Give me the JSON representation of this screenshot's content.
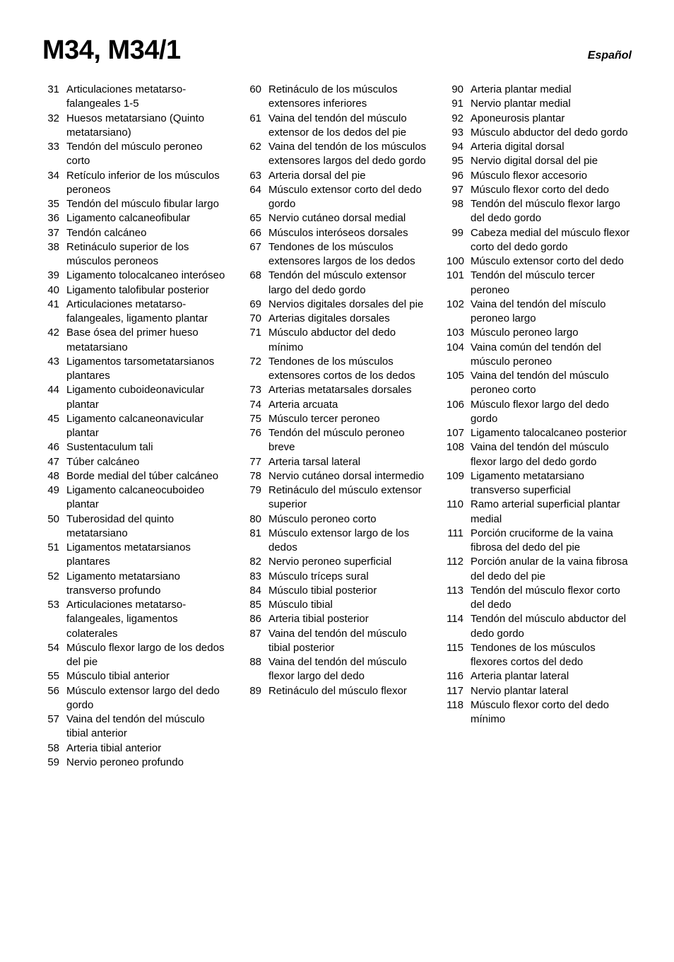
{
  "header": {
    "title": "M34, M34/1",
    "language": "Español"
  },
  "columns": [
    [
      {
        "n": "31",
        "t": "Articulaciones metatarso­falangeales 1-5"
      },
      {
        "n": "32",
        "t": "Huesos metatarsiano (Quinto metatarsiano)"
      },
      {
        "n": "33",
        "t": "Tendón del músculo peroneo corto"
      },
      {
        "n": "34",
        "t": "Retículo inferior de los músculos peroneos"
      },
      {
        "n": "35",
        "t": "Tendón del músculo fibular largo"
      },
      {
        "n": "36",
        "t": "Ligamento calcaneofibular"
      },
      {
        "n": "37",
        "t": "Tendón calcáneo"
      },
      {
        "n": "38",
        "t": "Retináculo superior de los músculos peroneos"
      },
      {
        "n": "39",
        "t": "Ligamento tolocalcaneo interóseo"
      },
      {
        "n": "40",
        "t": "Ligamento talofibular posterior"
      },
      {
        "n": "41",
        "t": "Articulaciones metatarso­falangeales, ligamento plantar"
      },
      {
        "n": "42",
        "t": "Base ósea del primer hueso metatarsiano"
      },
      {
        "n": "43",
        "t": "Ligamentos tarsometatarsi­anos plantares"
      },
      {
        "n": "44",
        "t": "Ligamento cuboideonavi­cular plantar"
      },
      {
        "n": "45",
        "t": "Ligamento calcaneonavicu­lar plantar"
      },
      {
        "n": "46",
        "t": "Sustentaculum tali"
      },
      {
        "n": "47",
        "t": "Túber calcáneo"
      },
      {
        "n": "48",
        "t": "Borde medial del túber calcáneo"
      },
      {
        "n": "49",
        "t": "Ligamento calcaneo­cuboideo plantar"
      },
      {
        "n": "50",
        "t": "Tuberosidad del quinto metatarsiano"
      },
      {
        "n": "51",
        "t": "Ligamentos metatarsianos plantares"
      },
      {
        "n": "52",
        "t": "Ligamento metatarsiano transverso profundo"
      },
      {
        "n": "53",
        "t": "Articulaciones metatarso­falangeales, ligamentos colaterales"
      },
      {
        "n": "54",
        "t": "Músculo flexor largo de los dedos del pie"
      },
      {
        "n": "55",
        "t": "Músculo tibial anterior"
      },
      {
        "n": "56",
        "t": "Músculo extensor largo del dedo gordo"
      },
      {
        "n": "57",
        "t": "Vaina del tendón del músculo tibial anterior"
      },
      {
        "n": "58",
        "t": "Arteria tibial anterior"
      },
      {
        "n": "59",
        "t": "Nervio peroneo profundo"
      }
    ],
    [
      {
        "n": "60",
        "t": "Retináculo de los músculos extensores inferiores"
      },
      {
        "n": "61",
        "t": "Vaina del tendón del músculo extensor de los dedos del pie"
      },
      {
        "n": "62",
        "t": "Vaina del tendón de los músculos extensores largos del dedo gordo"
      },
      {
        "n": "63",
        "t": "Arteria dorsal del pie"
      },
      {
        "n": "64",
        "t": "Músculo extensor corto del dedo gordo"
      },
      {
        "n": "65",
        "t": "Nervio cutáneo dorsal medial"
      },
      {
        "n": "66",
        "t": "Músculos interóseos dorsales"
      },
      {
        "n": "67",
        "t": "Tendones de los músculos extensores largos de los dedos"
      },
      {
        "n": "68",
        "t": "Tendón del músculo exten­sor largo del dedo gordo"
      },
      {
        "n": "69",
        "t": "Nervios digitales dorsales del pie"
      },
      {
        "n": "70",
        "t": "Arterias digitales dorsales"
      },
      {
        "n": "71",
        "t": "Músculo abductor del dedo mínimo"
      },
      {
        "n": "72",
        "t": "Tendones de los músculos extensores cortos de los dedos"
      },
      {
        "n": "73",
        "t": "Arterias metatarsales dorsales"
      },
      {
        "n": "74",
        "t": "Arteria arcuata"
      },
      {
        "n": "75",
        "t": "Músculo tercer peroneo"
      },
      {
        "n": "76",
        "t": "Tendón del músculo peroneo breve"
      },
      {
        "n": "77",
        "t": "Arteria tarsal lateral"
      },
      {
        "n": "78",
        "t": "Nervio cutáneo dorsal intermedio"
      },
      {
        "n": "79",
        "t": "Retináculo del músculo extensor superior"
      },
      {
        "n": "80",
        "t": "Músculo peroneo corto"
      },
      {
        "n": "81",
        "t": "Músculo extensor largo de los dedos"
      },
      {
        "n": "82",
        "t": "Nervio peroneo superficial"
      },
      {
        "n": "83",
        "t": "Músculo tríceps sural"
      },
      {
        "n": "84",
        "t": "Músculo tibial posterior"
      },
      {
        "n": "85",
        "t": "Músculo tibial"
      },
      {
        "n": "86",
        "t": "Arteria tibial posterior"
      },
      {
        "n": "87",
        "t": "Vaina del tendón del músculo tibial posterior"
      },
      {
        "n": "88",
        "t": "Vaina del tendón del mús­culo flexor largo del dedo"
      },
      {
        "n": "89",
        "t": "Retináculo del músculo flexor"
      }
    ],
    [
      {
        "n": "90",
        "t": "Arteria plantar medial"
      },
      {
        "n": "91",
        "t": "Nervio plantar medial"
      },
      {
        "n": "92",
        "t": "Aponeurosis plantar"
      },
      {
        "n": "93",
        "t": "Músculo abductor del dedo gordo"
      },
      {
        "n": "94",
        "t": "Arteria digital dorsal"
      },
      {
        "n": "95",
        "t": "Nervio digital dorsal del pie"
      },
      {
        "n": "96",
        "t": "Músculo flexor accesorio"
      },
      {
        "n": "97",
        "t": "Músculo flexor corto del dedo"
      },
      {
        "n": "98",
        "t": "Tendón del músculo flexor largo del dedo gordo"
      },
      {
        "n": "99",
        "t": "Cabeza medial del músculo flexor corto del dedo gordo"
      },
      {
        "n": "100",
        "t": "Músculo extensor corto del dedo"
      },
      {
        "n": "101",
        "t": "Tendón del músculo tercer peroneo"
      },
      {
        "n": "102",
        "t": "Vaina del tendón del mísculo peroneo largo"
      },
      {
        "n": "103",
        "t": "Músculo peroneo largo"
      },
      {
        "n": "104",
        "t": "Vaina común del tendón del músculo peroneo"
      },
      {
        "n": "105",
        "t": "Vaina del tendón del músculo peroneo corto"
      },
      {
        "n": "106",
        "t": "Músculo flexor largo del dedo gordo"
      },
      {
        "n": "107",
        "t": "Ligamento talocalcaneo posterior"
      },
      {
        "n": "108",
        "t": "Vaina del tendón del músculo flexor largo del dedo gordo"
      },
      {
        "n": "109",
        "t": "Ligamento metatarsiano transverso superficial"
      },
      {
        "n": "110",
        "t": "Ramo arterial superficial plantar medial"
      },
      {
        "n": "111",
        "t": "Porción cruciforme de la vaina fibrosa del dedo del pie"
      },
      {
        "n": "112",
        "t": "Porción anular de la vaina fibrosa del dedo del pie"
      },
      {
        "n": "113",
        "t": "Tendón del músculo flexor corto del dedo"
      },
      {
        "n": "114",
        "t": "Tendón del músculo abductor del dedo gordo"
      },
      {
        "n": "115",
        "t": "Tendones de los músculos flexores cortos del dedo"
      },
      {
        "n": "116",
        "t": "Arteria plantar lateral"
      },
      {
        "n": "117",
        "t": "Nervio plantar lateral"
      },
      {
        "n": "118",
        "t": "Músculo flexor corto del dedo mínimo"
      }
    ]
  ]
}
